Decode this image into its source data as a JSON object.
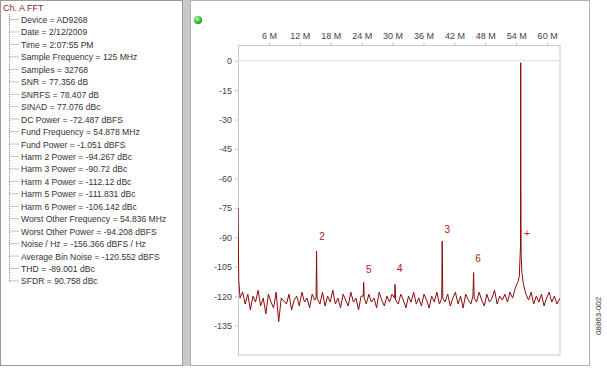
{
  "chart_data": {
    "type": "line",
    "x": [
      0,
      0.15,
      0.4,
      0.9,
      1.4,
      1.9,
      2.4,
      2.9,
      3.4,
      3.9,
      4.4,
      4.9,
      5.4,
      5.9,
      6.4,
      6.9,
      7.4,
      7.9,
      8.4,
      9.4,
      9.9,
      10.4,
      10.9,
      11.4,
      11.9,
      12.4,
      12.9,
      13.4,
      13.9,
      14.4,
      14.9,
      15.15,
      15.244,
      15.35,
      15.9,
      16.4,
      16.9,
      17.4,
      17.9,
      18.4,
      18.9,
      19.4,
      19.9,
      20.4,
      20.9,
      21.4,
      21.9,
      22.4,
      22.9,
      23.4,
      23.9,
      24.3,
      24.39,
      24.5,
      24.9,
      25.4,
      25.9,
      26.4,
      26.9,
      27.4,
      27.9,
      28.4,
      28.9,
      29.4,
      29.9,
      30.4,
      30.488,
      30.6,
      31.1,
      31.6,
      32.1,
      32.6,
      33.1,
      33.6,
      34.1,
      34.6,
      35.1,
      35.6,
      36.1,
      36.6,
      37.1,
      37.6,
      38.1,
      38.6,
      39.1,
      39.55,
      39.634,
      39.75,
      40.2,
      40.7,
      41.2,
      41.7,
      42.2,
      42.7,
      43.2,
      43.7,
      44.2,
      44.7,
      45.2,
      45.6,
      45.732,
      45.85,
      46.3,
      46.8,
      47.3,
      47.8,
      48.3,
      48.8,
      49.3,
      49.8,
      50.3,
      50.8,
      51.3,
      51.8,
      52.3,
      52.8,
      53.3,
      53.8,
      54.3,
      54.6,
      54.75,
      54.836,
      54.86,
      54.878,
      54.9,
      54.95,
      55.1,
      55.4,
      55.9,
      56.4,
      56.9,
      57.4,
      57.9,
      58.4,
      58.9,
      59.4,
      59.9,
      60.4,
      60.9,
      61.4,
      61.9,
      62.5
    ],
    "series": [
      {
        "name": "Ch. A",
        "color": "#8b0a0a",
        "values": [
          -75,
          -112,
          -121,
          -118,
          -124,
          -119,
          -127,
          -120,
          -123,
          -117,
          -125,
          -121,
          -129,
          -119,
          -123,
          -126,
          -118,
          -133,
          -121,
          -124,
          -119,
          -127,
          -122,
          -120,
          -125,
          -118,
          -123,
          -121,
          -126,
          -119,
          -122,
          -121,
          -97,
          -121,
          -124,
          -118,
          -125,
          -120,
          -123,
          -117,
          -124,
          -121,
          -126,
          -119,
          -122,
          -125,
          -118,
          -123,
          -121,
          -127,
          -120,
          -120,
          -113,
          -121,
          -124,
          -119,
          -123,
          -121,
          -126,
          -118,
          -122,
          -125,
          -120,
          -123,
          -119,
          -121,
          -114,
          -122,
          -124,
          -119,
          -122,
          -126,
          -120,
          -123,
          -118,
          -124,
          -121,
          -125,
          -119,
          -122,
          -126,
          -120,
          -123,
          -118,
          -124,
          -121,
          -92,
          -121,
          -123,
          -119,
          -125,
          -121,
          -118,
          -124,
          -120,
          -126,
          -119,
          -122,
          -124,
          -120,
          -108,
          -121,
          -123,
          -118,
          -122,
          -125,
          -119,
          -123,
          -121,
          -117,
          -124,
          -120,
          -122,
          -119,
          -123,
          -118,
          -121,
          -116,
          -113,
          -110,
          -100,
          -94.208,
          -60,
          -1.051,
          -60,
          -98,
          -108,
          -114,
          -119,
          -122,
          -118,
          -124,
          -120,
          -123,
          -119,
          -125,
          -121,
          -118,
          -123,
          -120,
          -124,
          -121
        ]
      }
    ],
    "xlim": [
      0,
      62.5
    ],
    "xticks": [
      {
        "value": 6,
        "label": "6 M"
      },
      {
        "value": 12,
        "label": "12 M"
      },
      {
        "value": 18,
        "label": "18 M"
      },
      {
        "value": 24,
        "label": "24 M"
      },
      {
        "value": 30,
        "label": "30 M"
      },
      {
        "value": 36,
        "label": "36 M"
      },
      {
        "value": 42,
        "label": "42 M"
      },
      {
        "value": 48,
        "label": "48 M"
      },
      {
        "value": 54,
        "label": "54 M"
      },
      {
        "value": 60,
        "label": "60 M"
      }
    ],
    "ylim": [
      -150,
      8
    ],
    "yticks": [
      0,
      -15,
      -30,
      -45,
      -60,
      -75,
      -90,
      -105,
      -120,
      -135
    ],
    "grid": false,
    "annotations": [
      {
        "text": "2",
        "x": 16.3,
        "y": -91.4
      },
      {
        "text": "3",
        "x": 40.6,
        "y": -87.8
      },
      {
        "text": "5",
        "x": 25.4,
        "y": -108.2
      },
      {
        "text": "4",
        "x": 31.4,
        "y": -107.7
      },
      {
        "text": "6",
        "x": 46.6,
        "y": -102.6
      },
      {
        "text": "+",
        "x": 56.1,
        "y": -89.9
      }
    ]
  },
  "panel": {
    "title": "Ch. A FFT",
    "items": [
      "Device = AD9268",
      "Date = 2/12/2009",
      "Time = 2:07:55 PM",
      "Sample Frequency = 125 MHz",
      "Samples = 32768",
      "SNR = 77.356 dB",
      "SNRFS = 78.407 dB",
      "SINAD = 77.076 dBc",
      "DC Power = -72.487 dBFS",
      "Fund Frequency = 54.878 MHz",
      "Fund Power = -1.051 dBFS",
      "Harm 2 Power = -94.267 dBc",
      "Harm 3 Power = -90.72 dBc",
      "Harm 4 Power = -112.12 dBc",
      "Harm 5 Power = -111.831 dBc",
      "Harm 6 Power = -106.142 dBc",
      "Worst Other Frequency = 54.836 MHz",
      "Worst Other Power = -94.208 dBFS",
      "Noise / Hz = -156.366 dBFS / Hz",
      "Average Bin Noise = -120.552 dBFS",
      "THD = -89.001 dBc",
      "SFDR = 90.758 dBc"
    ]
  },
  "figure_id": "08863-002"
}
